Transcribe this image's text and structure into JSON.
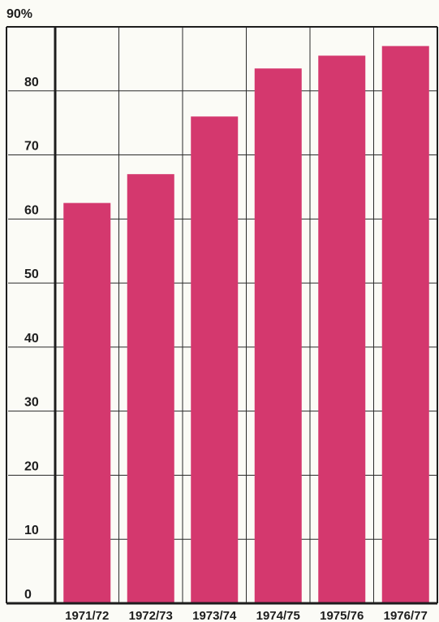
{
  "chart_data": {
    "type": "bar",
    "title": "",
    "xlabel": "",
    "ylabel": "",
    "y_top_label": "90%",
    "categories": [
      "1971/72",
      "1972/73",
      "1973/74",
      "1974/75",
      "1975/76",
      "1976/77"
    ],
    "values": [
      62.5,
      67,
      76,
      83.5,
      85.5,
      87
    ],
    "ylim": [
      0,
      90
    ],
    "yticks": [
      0,
      10,
      20,
      30,
      40,
      50,
      60,
      70,
      80
    ],
    "ytick_labels": [
      "0",
      "10",
      "20",
      "30",
      "40",
      "50",
      "60",
      "70",
      "80"
    ],
    "grid": true,
    "legend": "none",
    "bar_color": "#d4386e",
    "grid_color": "#2a2a2a",
    "background_color": "#fbfbf6"
  }
}
